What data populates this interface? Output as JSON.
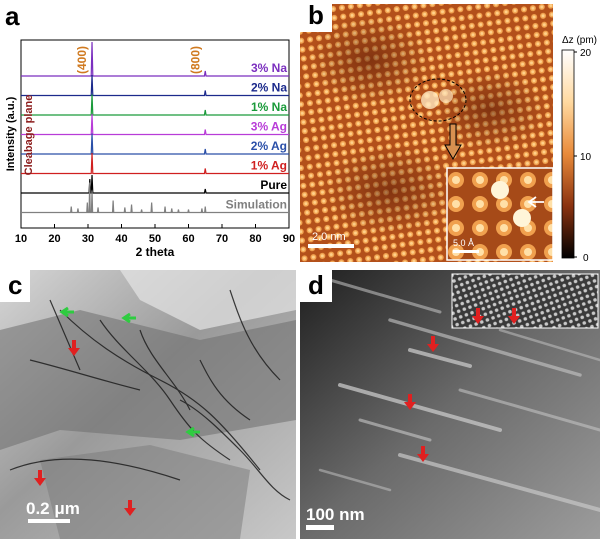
{
  "panel_a": {
    "letter": "a",
    "chart_data": {
      "type": "line",
      "xlabel": "2 theta",
      "ylabel": "Intensity (a.u.)",
      "xlim": [
        10,
        90
      ],
      "x_ticks": [
        "10",
        "20",
        "30",
        "40",
        "50",
        "60",
        "70",
        "80",
        "90"
      ],
      "peak_labels": [
        {
          "text": "(400)",
          "x": 31.2
        },
        {
          "text": "(800)",
          "x": 65.0
        }
      ],
      "annotation": "Cleabage plane",
      "series": [
        {
          "name": "3% Na",
          "color": "#7b2fbf"
        },
        {
          "name": "2% Na",
          "color": "#1c2a8c"
        },
        {
          "name": "1% Na",
          "color": "#1a9a3a"
        },
        {
          "name": "3% Ag",
          "color": "#b83cd8"
        },
        {
          "name": "2% Ag",
          "color": "#2a4fa8"
        },
        {
          "name": "1% Ag",
          "color": "#d02020"
        },
        {
          "name": "Pure",
          "color": "#000000"
        },
        {
          "name": "Simulation",
          "color": "#808080"
        }
      ]
    }
  },
  "panel_b": {
    "letter": "b",
    "colorbar_title": "Δz (pm)",
    "colorbar_ticks": [
      "20",
      "10",
      "0"
    ],
    "scale_bar": "2.0 nm",
    "inset_scale_bar": "5.0 Å"
  },
  "panel_c": {
    "letter": "c",
    "scale_bar": "0.2 μm"
  },
  "panel_d": {
    "letter": "d",
    "scale_bar": "100 nm"
  }
}
